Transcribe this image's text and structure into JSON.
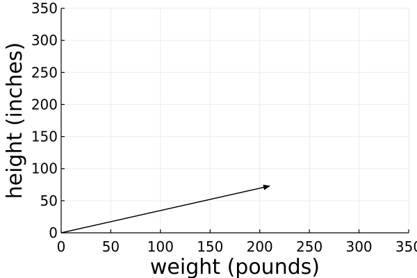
{
  "chart_data": {
    "type": "line",
    "title": "",
    "xlabel": "weight (pounds)",
    "ylabel": "height (inches)",
    "xlim": [
      0,
      350
    ],
    "ylim": [
      0,
      350
    ],
    "xticks": [
      0,
      50,
      100,
      150,
      200,
      250,
      300,
      350
    ],
    "yticks": [
      0,
      50,
      100,
      150,
      200,
      250,
      300,
      350
    ],
    "grid": true,
    "legend": "none",
    "series": [
      {
        "marker": "arrow",
        "x": [
          0,
          210
        ],
        "y": [
          0,
          73
        ]
      }
    ]
  }
}
